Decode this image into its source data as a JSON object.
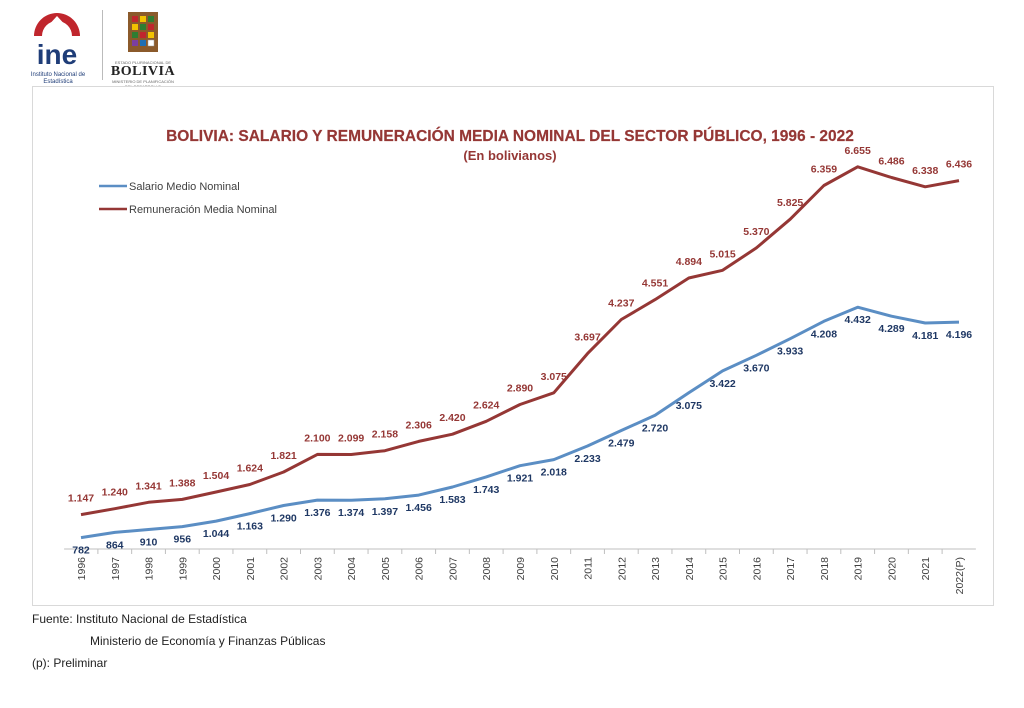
{
  "logos": {
    "ine_text": "ine",
    "ine_subtitle": "Instituto Nacional de Estadística",
    "bolivia_small": "ESTADO PLURINACIONAL DE",
    "bolivia_word": "BOLIVIA",
    "bolivia_sub": "MINISTERIO DE PLANIFICACIÓN DEL DESARROLLO"
  },
  "chart_data": {
    "type": "line",
    "title": "BOLIVIA: SALARIO Y REMUNERACIÓN MEDIA NOMINAL DEL SECTOR PÚBLICO, 1996 - 2022",
    "subtitle": "(En bolivianos)",
    "xlabel": "",
    "ylabel": "",
    "legend_position": "top-left",
    "grid": false,
    "ylim": [
      0,
      7000
    ],
    "categories": [
      "1996",
      "1997",
      "1998",
      "1999",
      "2000",
      "2001",
      "2002",
      "2003",
      "2004",
      "2005",
      "2006",
      "2007",
      "2008",
      "2009",
      "2010",
      "2011",
      "2012",
      "2013",
      "2014",
      "2015",
      "2016",
      "2017",
      "2018",
      "2019",
      "2020",
      "2021",
      "2022(P)"
    ],
    "series": [
      {
        "name": "Salario Medio Nominal",
        "color": "#5b8ec4",
        "label_color": "#1f3864",
        "label_position": "below",
        "values": [
          782,
          864,
          910,
          956,
          1044,
          1163,
          1290,
          1376,
          1374,
          1397,
          1456,
          1583,
          1743,
          1921,
          2018,
          2233,
          2479,
          2720,
          3075,
          3422,
          3670,
          3933,
          4208,
          4432,
          4289,
          4181,
          4196
        ],
        "labels": [
          "782",
          "864",
          "910",
          "956",
          "1.044",
          "1.163",
          "1.290",
          "1.376",
          "1.374",
          "1.397",
          "1.456",
          "1.583",
          "1.743",
          "1.921",
          "2.018",
          "2.233",
          "2.479",
          "2.720",
          "3.075",
          "3.422",
          "3.670",
          "3.933",
          "4.208",
          "4.432",
          "4.289",
          "4.181",
          "4.196"
        ]
      },
      {
        "name": "Remuneración Media Nominal",
        "color": "#953735",
        "label_color": "#953735",
        "label_position": "above",
        "values": [
          1147,
          1240,
          1341,
          1388,
          1504,
          1624,
          1821,
          2100,
          2099,
          2158,
          2306,
          2420,
          2624,
          2890,
          3075,
          3697,
          4237,
          4551,
          4894,
          5015,
          5370,
          5825,
          6359,
          6655,
          6486,
          6338,
          6436
        ],
        "labels": [
          "1.147",
          "1.240",
          "1.341",
          "1.388",
          "1.504",
          "1.624",
          "1.821",
          "2.100",
          "2.099",
          "2.158",
          "2.306",
          "2.420",
          "2.624",
          "2.890",
          "3.075",
          "3.697",
          "4.237",
          "4.551",
          "4.894",
          "5.015",
          "5.370",
          "5.825",
          "6.359",
          "6.655",
          "6.486",
          "6.338",
          "6.436"
        ]
      }
    ]
  },
  "footer": {
    "source_label": "Fuente: Instituto Nacional de Estadística",
    "source_line2": "Ministerio de Economía y Finanzas Públicas",
    "note": "(p): Preliminar"
  }
}
